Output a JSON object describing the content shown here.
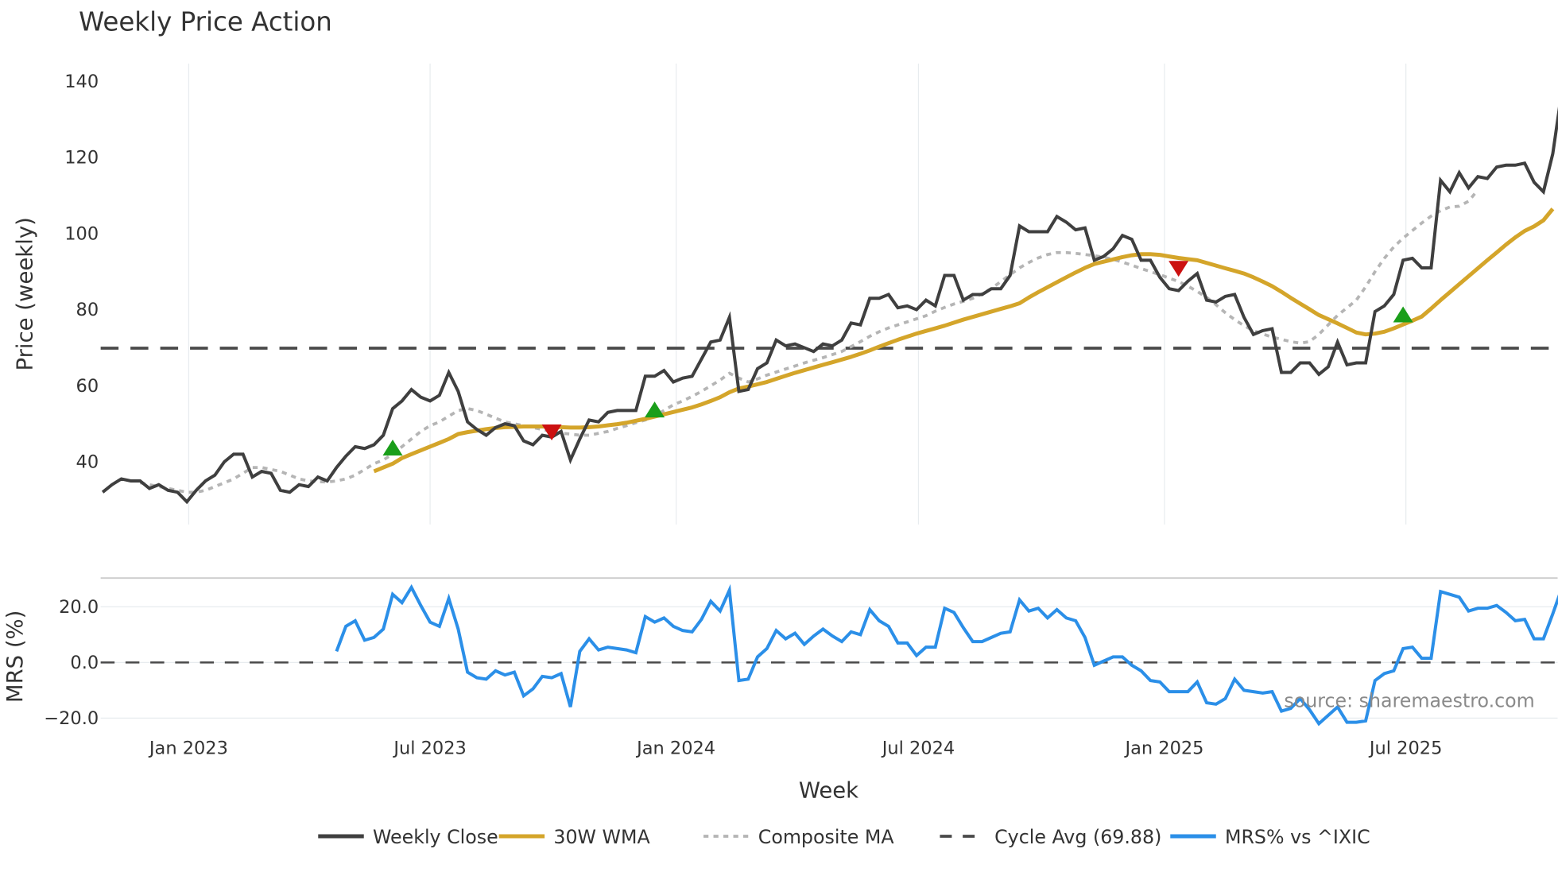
{
  "title": "Weekly Price Action",
  "source_note": "source: sharemaestro.com",
  "xlabel": "Week",
  "price_panel": {
    "ylabel": "Price (weekly)",
    "y_ticks": [
      40,
      60,
      80,
      100,
      120,
      140
    ],
    "cycle_avg": 69.88
  },
  "mrs_panel": {
    "ylabel": "MRS (%)",
    "y_ticks": [
      "−20.0",
      "0.0",
      "20.0"
    ],
    "y_tick_values": [
      -20,
      0,
      20
    ]
  },
  "x_ticks": [
    {
      "label": "Jan 2023",
      "week": 9.2
    },
    {
      "label": "Jul 2023",
      "week": 35.0
    },
    {
      "label": "Jan 2024",
      "week": 61.3
    },
    {
      "label": "Jul 2024",
      "week": 87.2
    },
    {
      "label": "Jan 2025",
      "week": 113.5
    },
    {
      "label": "Jul 2025",
      "week": 139.3
    }
  ],
  "legend": [
    {
      "label": "Weekly Close",
      "color": "#3f3f3f",
      "style": "solid"
    },
    {
      "label": "30W WMA",
      "color": "#d4a52a",
      "style": "solid"
    },
    {
      "label": "Composite MA",
      "color": "#b5b5b5",
      "style": "dotted"
    },
    {
      "label": "Cycle Avg (69.88)",
      "color": "#4a4a4a",
      "style": "dashed"
    },
    {
      "label": "MRS% vs ^IXIC",
      "color": "#2b8fe8",
      "style": "solid"
    }
  ],
  "colors": {
    "close": "#3f3f3f",
    "wma": "#d4a52a",
    "composite": "#b5b5b5",
    "cycle": "#4a4a4a",
    "mrs": "#2b8fe8",
    "buy": "#1a9e1a",
    "sell": "#cc1111",
    "grid": "#e8ecef"
  },
  "chart_data": [
    {
      "type": "line",
      "title": "Weekly Price Action",
      "xlabel": "Week",
      "ylabel": "Price (weekly)",
      "ylim": [
        26,
        143
      ],
      "grid": true,
      "legend_position": "bottom",
      "x_tick_labels": [
        "Jan 2023",
        "Jul 2023",
        "Jan 2024",
        "Jul 2024",
        "Jan 2025",
        "Jul 2025"
      ],
      "series": [
        {
          "name": "Weekly Close",
          "start_week": 0,
          "values": [
            32,
            34,
            35.5,
            35,
            35,
            33,
            34,
            32.5,
            32,
            29.5,
            32.5,
            35,
            36.5,
            40,
            42,
            42,
            36,
            37.5,
            37,
            32.5,
            32,
            34,
            33.5,
            36,
            35,
            38.5,
            41.5,
            44,
            43.5,
            44.5,
            47,
            54,
            56,
            59,
            57,
            56,
            57.5,
            63.5,
            58.5,
            50.5,
            48.5,
            47,
            49,
            50,
            49.5,
            45.5,
            44.5,
            47,
            46.5,
            48,
            40.5,
            46,
            51,
            50.5,
            53,
            53.5,
            53.5,
            53.5,
            62.5,
            62.5,
            64,
            61,
            62,
            62.5,
            67,
            71.5,
            72,
            78,
            58.5,
            59,
            64.5,
            66,
            72,
            70.5,
            71,
            70,
            69,
            71,
            70.5,
            72,
            76.5,
            76,
            83,
            83,
            84,
            80.5,
            81,
            80,
            82.5,
            81,
            89,
            89,
            82.5,
            84,
            84,
            85.5,
            85.5,
            89,
            102,
            100.5,
            100.5,
            100.5,
            104.5,
            103,
            101,
            101.5,
            93,
            94,
            96,
            99.5,
            98.5,
            93,
            93,
            88.5,
            85.5,
            85,
            87.5,
            89.5,
            82.5,
            82,
            83.5,
            84,
            78,
            73.5,
            74.5,
            75,
            63.5,
            63.5,
            66,
            66,
            63,
            65,
            71.5,
            65.5,
            66,
            66,
            79.5,
            81,
            84,
            93,
            93.5,
            91,
            91,
            114,
            111,
            116,
            112,
            115,
            114.5,
            117.5,
            118,
            118,
            118.5,
            113.5,
            111,
            121,
            138
          ]
        },
        {
          "name": "30W WMA",
          "start_week": 29,
          "values": [
            37.5,
            38.5,
            39.5,
            41,
            42,
            43,
            44,
            45,
            46,
            47.3,
            47.8,
            48.2,
            48.6,
            48.9,
            49.1,
            49.2,
            49.3,
            49.3,
            49.3,
            49.2,
            49.1,
            49,
            49,
            49.1,
            49.3,
            49.6,
            49.9,
            50.3,
            50.8,
            51.3,
            51.9,
            52.5,
            53.1,
            53.7,
            54.3,
            55.1,
            56,
            57,
            58.3,
            59.3,
            59.8,
            60.4,
            61,
            61.8,
            62.6,
            63.4,
            64.1,
            64.8,
            65.5,
            66.2,
            66.9,
            67.6,
            68.4,
            69.3,
            70.3,
            71.2,
            72.1,
            72.9,
            73.7,
            74.4,
            75.1,
            75.8,
            76.6,
            77.4,
            78.1,
            78.8,
            79.5,
            80.2,
            80.9,
            81.7,
            83.2,
            84.6,
            85.9,
            87.2,
            88.5,
            89.8,
            91,
            92,
            92.6,
            93.2,
            93.8,
            94.3,
            94.6,
            94.6,
            94.4,
            94,
            93.6,
            93.3,
            93,
            92.3,
            91.6,
            90.9,
            90.2,
            89.5,
            88.5,
            87.4,
            86.2,
            84.7,
            83.1,
            81.6,
            80.1,
            78.6,
            77.5,
            76.4,
            75.2,
            74,
            73.5,
            73.7,
            74.2,
            75.1,
            76.1,
            77.1,
            78.2,
            80.3,
            82.5,
            84.6,
            86.7,
            88.8,
            90.9,
            93,
            95,
            97.1,
            99,
            100.7,
            101.9,
            103.5,
            106.5
          ]
        },
        {
          "name": "Composite MA",
          "start_week": 4,
          "values": [
            34.5,
            34,
            33.5,
            33,
            32.5,
            32,
            32,
            32.5,
            33.5,
            34.5,
            35.5,
            37,
            38.5,
            38.5,
            38,
            37.5,
            36.5,
            35.5,
            35,
            34.8,
            34.7,
            35,
            35.5,
            36.5,
            38,
            39.5,
            40.5,
            42,
            44,
            46,
            48,
            49.5,
            50.5,
            52,
            53.5,
            54,
            53.5,
            52.5,
            51.5,
            50.5,
            50,
            49.5,
            49,
            48.5,
            48,
            47.5,
            47.3,
            47,
            47,
            47.5,
            48,
            48.8,
            49.5,
            50.3,
            51,
            52,
            53.5,
            55,
            56,
            57.2,
            58.5,
            60,
            61.5,
            63.3,
            62,
            61,
            61.8,
            62.8,
            63.6,
            64.4,
            65.2,
            66,
            66.7,
            67.4,
            68.2,
            69,
            70.3,
            71.6,
            73,
            74.2,
            75.2,
            76,
            76.8,
            77.6,
            78.4,
            79.6,
            80.6,
            81.5,
            82.2,
            83,
            84.2,
            85.6,
            87.4,
            89.2,
            91,
            92.4,
            93.6,
            94.5,
            95,
            95,
            94.8,
            94.5,
            94.2,
            93.8,
            93.2,
            92.5,
            91.7,
            90.8,
            90,
            89.2,
            88.3,
            87.4,
            86.2,
            84.8,
            83.2,
            81.3,
            79.2,
            77.4,
            75.8,
            74.5,
            73.6,
            72.8,
            72.2,
            71.6,
            71.2,
            71.6,
            73.5,
            76,
            78.5,
            80.5,
            82.5,
            86,
            90,
            93.5,
            96.5,
            98.8,
            100.8,
            102.8,
            104.6,
            106,
            107,
            107.2,
            108.5,
            111.5
          ]
        },
        {
          "name": "Cycle Avg (69.88)",
          "constant": 69.88
        }
      ],
      "signals": [
        {
          "type": "buy",
          "week": 31,
          "value": 43.5
        },
        {
          "type": "sell",
          "week": 48,
          "value": 48
        },
        {
          "type": "buy",
          "week": 59,
          "value": 53.5
        },
        {
          "type": "sell",
          "week": 115,
          "value": 91
        },
        {
          "type": "buy",
          "week": 139,
          "value": 78.5
        }
      ]
    },
    {
      "type": "line",
      "title": "",
      "xlabel": "Week",
      "ylabel": "MRS (%)",
      "ylim": [
        -25,
        31
      ],
      "grid": true,
      "series": [
        {
          "name": "MRS% vs ^IXIC",
          "start_week": 25,
          "values": [
            4,
            13,
            15,
            8,
            9,
            12,
            24.5,
            21.5,
            27,
            20.5,
            14.5,
            13,
            23,
            12,
            -3.5,
            -5.5,
            -6,
            -3,
            -4.5,
            -3.5,
            -12,
            -9.5,
            -5,
            -5.5,
            -4,
            -16,
            4,
            8.5,
            4.5,
            5.5,
            5,
            4.5,
            3.5,
            16.5,
            14.5,
            16,
            13,
            11.5,
            11,
            15.5,
            22,
            18.5,
            26,
            -6.5,
            -6,
            2,
            5,
            11.5,
            8.5,
            10.5,
            6.5,
            9.5,
            12,
            9.5,
            7.5,
            11,
            10,
            19,
            15,
            13,
            7,
            7,
            2.5,
            5.5,
            5.5,
            19.5,
            18,
            12.5,
            7.5,
            7.5,
            9,
            10.5,
            11,
            22.5,
            18.5,
            19.5,
            16,
            19,
            16,
            15,
            9,
            -1,
            0.5,
            2,
            2,
            -1,
            -3,
            -6.5,
            -7,
            -10.5,
            -10.5,
            -10.5,
            -7,
            -14.5,
            -15,
            -13,
            -6,
            -10,
            -10.5,
            -11,
            -10.5,
            -17.5,
            -16.5,
            -13,
            -17,
            -22,
            -19,
            -16,
            -21.5,
            -21.5,
            -21,
            -6.5,
            -4,
            -3,
            5,
            5.5,
            1.5,
            1.5,
            25.5,
            24.5,
            23.5,
            18.5,
            19.5,
            19.5,
            20.5,
            18,
            15,
            15.5,
            8.5,
            8.5,
            17.5,
            27
          ]
        },
        {
          "name": "zero line",
          "constant": 0
        }
      ]
    }
  ]
}
